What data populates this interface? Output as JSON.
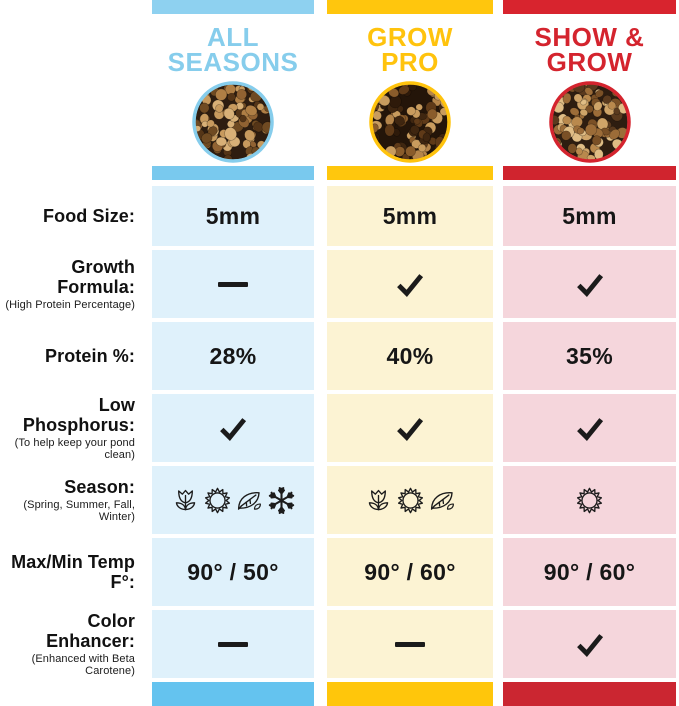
{
  "columns": [
    {
      "id": "all-seasons",
      "title_line1": "ALL",
      "title_line2": "SEASONS",
      "photo_icon": "fish-food-pellets-photo",
      "colors": {
        "title": "#86CDEC",
        "bar_top": "#8ED1F0",
        "bar_body": "#79C9EE",
        "bar_bottom": "#64C3EF",
        "cell_bg": "#DFF1FB",
        "ring": "#86CDEC"
      }
    },
    {
      "id": "grow-pro",
      "title_line1": "GROW",
      "title_line2": "PRO",
      "photo_icon": "fish-food-pellets-photo",
      "colors": {
        "title": "#FFC30D",
        "bar_top": "#FFC60D",
        "bar_body": "#FFC70D",
        "bar_bottom": "#FFC60B",
        "cell_bg": "#FCF3D3",
        "ring": "#FFC30D"
      }
    },
    {
      "id": "show-and-grow",
      "title_line1": "SHOW &",
      "title_line2": "GROW",
      "photo_icon": "fish-food-pellets-photo",
      "colors": {
        "title": "#D4242E",
        "bar_top": "#D8242E",
        "bar_body": "#D0242E",
        "bar_bottom": "#CB2631",
        "cell_bg": "#F5D6DC",
        "ring": "#D4242E"
      }
    }
  ],
  "rows": [
    {
      "id": "food-size",
      "label": "Food Size:",
      "sublabel": "",
      "values": [
        {
          "type": "text",
          "text": "5mm"
        },
        {
          "type": "text",
          "text": "5mm"
        },
        {
          "type": "text",
          "text": "5mm"
        }
      ]
    },
    {
      "id": "growth-formula",
      "label": "Growth Formula:",
      "sublabel": "(High Protein Percentage)",
      "values": [
        {
          "type": "dash"
        },
        {
          "type": "check"
        },
        {
          "type": "check"
        }
      ]
    },
    {
      "id": "protein",
      "label": "Protein %:",
      "sublabel": "",
      "values": [
        {
          "type": "text",
          "text": "28%"
        },
        {
          "type": "text",
          "text": "40%"
        },
        {
          "type": "text",
          "text": "35%"
        }
      ]
    },
    {
      "id": "low-phosphorus",
      "label": "Low Phosphorus:",
      "sublabel": "(To help keep your pond clean)",
      "values": [
        {
          "type": "check"
        },
        {
          "type": "check"
        },
        {
          "type": "check"
        }
      ]
    },
    {
      "id": "season",
      "label": "Season:",
      "sublabel": "(Spring, Summer, Fall, Winter)",
      "values": [
        {
          "type": "icons",
          "icons": [
            "tulip",
            "sun",
            "leaf",
            "snowflake"
          ]
        },
        {
          "type": "icons",
          "icons": [
            "tulip",
            "sun",
            "leaf"
          ]
        },
        {
          "type": "icons",
          "icons": [
            "sun"
          ]
        }
      ]
    },
    {
      "id": "max-min-temp",
      "label": "Max/Min Temp F°:",
      "sublabel": "",
      "values": [
        {
          "type": "text",
          "text": "90° / 50°"
        },
        {
          "type": "text",
          "text": "90° / 60°"
        },
        {
          "type": "text",
          "text": "90° / 60°"
        }
      ]
    },
    {
      "id": "color-enhancer",
      "label": "Color Enhancer:",
      "sublabel": "(Enhanced with Beta Carotene)",
      "values": [
        {
          "type": "dash"
        },
        {
          "type": "dash"
        },
        {
          "type": "check"
        }
      ]
    }
  ],
  "chart_data": {
    "type": "table",
    "title": "Pond fish food comparison chart",
    "columns": [
      "ALL SEASONS",
      "GROW PRO",
      "SHOW & GROW"
    ],
    "row_headers": [
      "Food Size: ",
      "Growth Formula: (High Protein Percentage)",
      "Protein %:",
      "Low Phosphorus: (To help keep your pond clean)",
      "Season: (Spring, Summer, Fall, Winter)",
      "Max/Min Temp F°:",
      "Color Enhancer: (Enhanced with Beta Carotene)"
    ],
    "cells": [
      [
        "5mm",
        "5mm",
        "5mm"
      ],
      [
        "no",
        "yes",
        "yes"
      ],
      [
        "28%",
        "40%",
        "35%"
      ],
      [
        "yes",
        "yes",
        "yes"
      ],
      [
        "Spring, Summer, Fall, Winter",
        "Spring, Summer, Fall",
        "Summer"
      ],
      [
        "90° / 50°",
        "90° / 60°",
        "90° / 60°"
      ],
      [
        "no",
        "no",
        "yes"
      ]
    ]
  }
}
